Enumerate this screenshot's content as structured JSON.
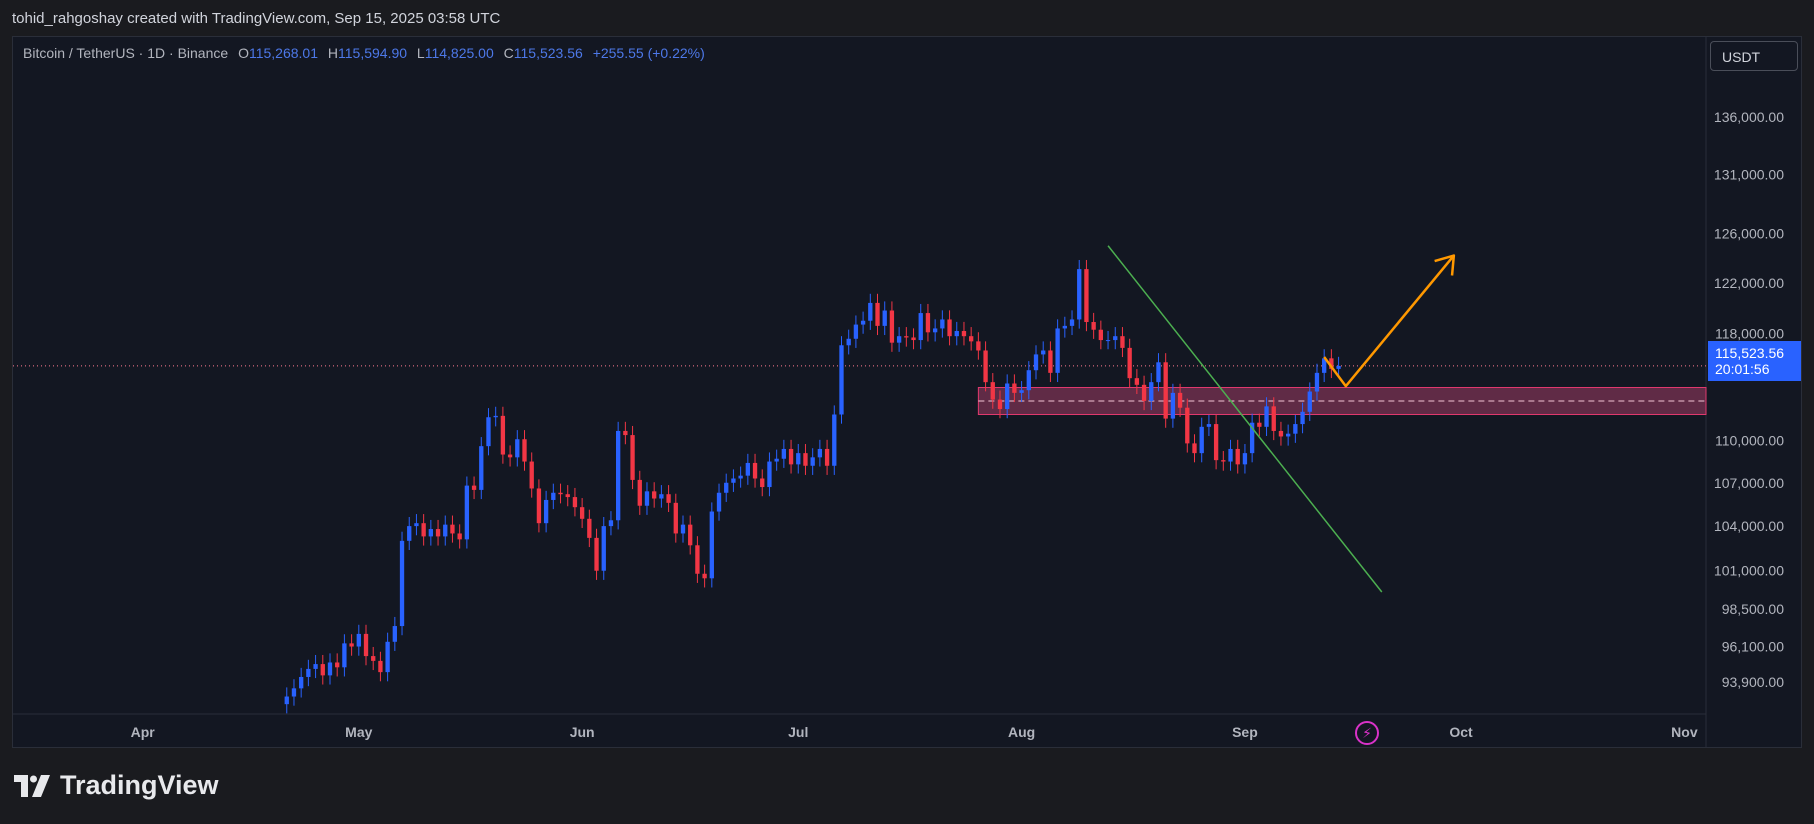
{
  "header": {
    "credit": "tohid_rahgoshay created with TradingView.com, Sep 15, 2025 03:58 UTC"
  },
  "legend": {
    "symbol": "Bitcoin / TetherUS · 1D · Binance",
    "o_label": "O",
    "o_value": "115,268.01",
    "h_label": "H",
    "h_value": "115,594.90",
    "l_label": "L",
    "l_value": "114,825.00",
    "c_label": "C",
    "c_value": "115,523.56",
    "change": "+255.55 (+0.22%)"
  },
  "currency_button": "USDT",
  "price_tag": {
    "price": "115,523.56",
    "countdown": "20:01:56"
  },
  "brand": {
    "name": "TradingView"
  },
  "chart_data": {
    "type": "candlestick",
    "y_axis": {
      "scale": "log",
      "range": [
        92000,
        140000
      ],
      "ticks": [
        {
          "value": 136000,
          "label": "136,000.00"
        },
        {
          "value": 131000,
          "label": "131,000.00"
        },
        {
          "value": 126000,
          "label": "126,000.00"
        },
        {
          "value": 122000,
          "label": "122,000.00"
        },
        {
          "value": 118000,
          "label": "118,000.00"
        },
        {
          "value": 110000,
          "label": "110,000.00"
        },
        {
          "value": 107000,
          "label": "107,000.00"
        },
        {
          "value": 104000,
          "label": "104,000.00"
        },
        {
          "value": 101000,
          "label": "101,000.00"
        },
        {
          "value": 98500,
          "label": "98,500.00"
        },
        {
          "value": 96100,
          "label": "96,100.00"
        },
        {
          "value": 93900,
          "label": "93,900.00"
        }
      ]
    },
    "x_axis": {
      "range": [
        "2025-03-14",
        "2025-11-04"
      ],
      "ticks": [
        {
          "date": "2025-04-01",
          "label": "Apr"
        },
        {
          "date": "2025-05-01",
          "label": "May"
        },
        {
          "date": "2025-06-01",
          "label": "Jun"
        },
        {
          "date": "2025-07-01",
          "label": "Jul"
        },
        {
          "date": "2025-08-01",
          "label": "Aug"
        },
        {
          "date": "2025-09-01",
          "label": "Sep"
        },
        {
          "date": "2025-10-01",
          "label": "Oct"
        },
        {
          "date": "2025-11-01",
          "label": "Nov"
        }
      ]
    },
    "up_color": "#2962ff",
    "down_color": "#f23645",
    "series_start": "2025-04-21",
    "last_price": 115523.56,
    "closes": [
      93000,
      93500,
      94200,
      94700,
      95000,
      94300,
      95100,
      94800,
      96300,
      96100,
      96900,
      95500,
      95200,
      94500,
      96400,
      97400,
      103000,
      104000,
      104200,
      103300,
      103800,
      103300,
      104100,
      103500,
      103100,
      106800,
      106500,
      109600,
      111700,
      111800,
      109000,
      108800,
      110100,
      108500,
      106600,
      104200,
      105800,
      106300,
      106200,
      106000,
      105300,
      104500,
      103200,
      101000,
      104000,
      104400,
      110700,
      110400,
      107200,
      105400,
      106400,
      105900,
      106200,
      105600,
      103500,
      104100,
      102700,
      100800,
      100500,
      105000,
      106300,
      107000,
      107300,
      107500,
      108400,
      107300,
      106700,
      108500,
      108700,
      109400,
      108300,
      109100,
      108200,
      108800,
      109400,
      108200,
      111900,
      117100,
      117600,
      118700,
      119000,
      120400,
      118600,
      119800,
      117300,
      117800,
      117700,
      117500,
      119600,
      118100,
      118400,
      119100,
      117800,
      118200,
      117800,
      117400,
      116700,
      114300,
      113000,
      112300,
      114200,
      113500,
      113700,
      115200,
      116400,
      116700,
      115000,
      118400,
      118600,
      119100,
      123100,
      118900,
      118300,
      117500,
      117500,
      117800,
      116900,
      114600,
      114100,
      112900,
      114300,
      115800,
      111600,
      113500,
      112400,
      109800,
      109100,
      111000,
      111200,
      108600,
      108500,
      109400,
      108300,
      109100,
      111300,
      111000,
      112500,
      110700,
      110300,
      110500,
      111200,
      112100,
      113600,
      115000,
      116100,
      115300,
      115523.56
    ],
    "annotations": {
      "zone": {
        "from": "2025-07-26",
        "to": "2025-11-04",
        "low": 111900,
        "high": 113900,
        "mid": 112900
      },
      "trendline": {
        "start": {
          "date": "2025-08-13",
          "price": 125000
        },
        "end": {
          "date": "2025-09-20",
          "price": 99600
        }
      },
      "projection": [
        {
          "date": "2025-09-12",
          "price": 116200
        },
        {
          "date": "2025-09-15",
          "price": 114000
        },
        {
          "date": "2025-09-30",
          "price": 124200
        }
      ]
    }
  }
}
